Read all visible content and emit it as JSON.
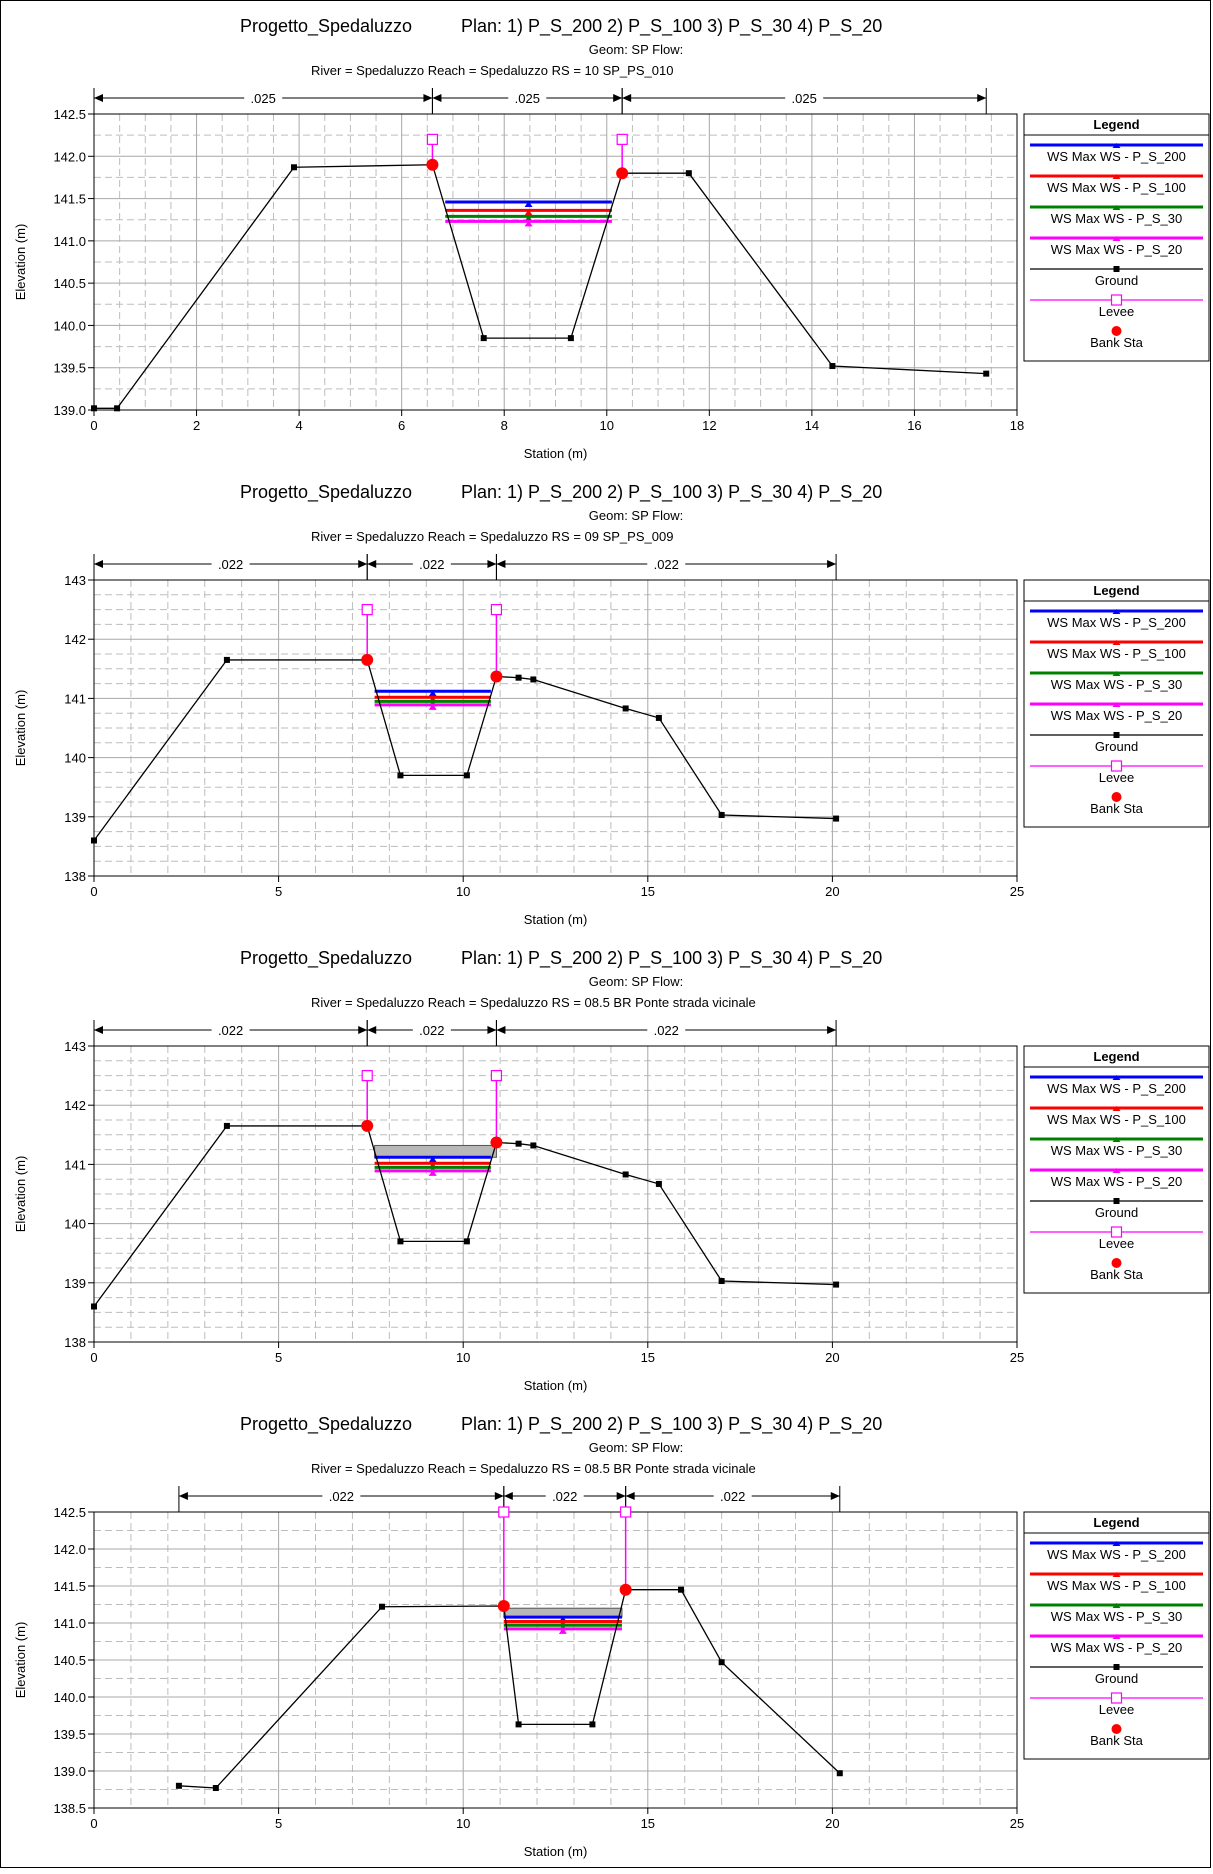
{
  "legend": {
    "title": "Legend",
    "entries": [
      "WS Max WS - P_S_200",
      "WS Max WS - P_S_100",
      "WS Max WS - P_S_30",
      "WS Max WS - P_S_20",
      "Ground",
      "Levee",
      "Bank Sta"
    ],
    "colors": [
      "#0000ff",
      "#ff0000",
      "#008000",
      "#ff00ff",
      "#000000",
      "#ff00ff",
      "#ff0000"
    ]
  },
  "chart_data": [
    {
      "type": "line",
      "title_project": "Progetto_Spedaluzzo",
      "title_plan": "Plan:     1) P_S_200    2) P_S_100    3) P_S_30    4) P_S_20",
      "title_geom": "Geom: SP    Flow:",
      "title_river": "River = Spedaluzzo    Reach = Spedaluzzo       RS = 10   SP_PS_010",
      "xlabel": "Station (m)",
      "ylabel": "Elevation (m)",
      "xlim": [
        0,
        18
      ],
      "ylim": [
        139.0,
        142.5
      ],
      "xticks": [
        0,
        2,
        4,
        6,
        8,
        10,
        12,
        14,
        16,
        18
      ],
      "yticks": [
        139.0,
        139.5,
        140.0,
        140.5,
        141.0,
        141.5,
        142.0,
        142.5
      ],
      "ydecimals": 1,
      "xminor": 4,
      "yminor": 2,
      "manning": [
        {
          "from": 0,
          "to": 6.6,
          "label": ".025"
        },
        {
          "from": 6.6,
          "to": 10.3,
          "label": ".025"
        },
        {
          "from": 10.3,
          "to": 17.4,
          "label": ".025"
        }
      ],
      "ground": [
        [
          0,
          139.02
        ],
        [
          0.45,
          139.02
        ],
        [
          3.9,
          141.87
        ],
        [
          6.6,
          141.9
        ],
        [
          7.6,
          139.85
        ],
        [
          9.3,
          139.85
        ],
        [
          10.3,
          141.8
        ],
        [
          11.6,
          141.8
        ],
        [
          14.4,
          139.52
        ],
        [
          17.4,
          139.43
        ]
      ],
      "levees": [
        [
          6.6,
          142.2
        ],
        [
          10.3,
          142.2
        ]
      ],
      "bank_stations": [
        [
          6.6,
          141.9
        ],
        [
          10.3,
          141.8
        ]
      ],
      "deck": null,
      "water_surface": [
        {
          "name": "WS Max WS - P_S_200",
          "elev": 141.46,
          "x1": 6.85,
          "x2": 10.1
        },
        {
          "name": "WS Max WS - P_S_100",
          "elev": 141.36,
          "x1": 6.85,
          "x2": 10.1
        },
        {
          "name": "WS Max WS - P_S_30",
          "elev": 141.29,
          "x1": 6.85,
          "x2": 10.1
        },
        {
          "name": "WS Max WS - P_S_20",
          "elev": 141.23,
          "x1": 6.85,
          "x2": 10.1
        }
      ]
    },
    {
      "type": "line",
      "title_project": "Progetto_Spedaluzzo",
      "title_plan": "Plan:     1) P_S_200    2) P_S_100    3) P_S_30    4) P_S_20",
      "title_geom": "Geom: SP    Flow:",
      "title_river": "River = Spedaluzzo    Reach = Spedaluzzo       RS = 09   SP_PS_009",
      "xlabel": "Station (m)",
      "ylabel": "Elevation (m)",
      "xlim": [
        0,
        25
      ],
      "ylim": [
        138,
        143
      ],
      "xticks": [
        0,
        5,
        10,
        15,
        20,
        25
      ],
      "yticks": [
        138,
        139,
        140,
        141,
        142,
        143
      ],
      "ydecimals": 0,
      "xminor": 5,
      "yminor": 4,
      "manning": [
        {
          "from": 0,
          "to": 7.4,
          "label": ".022"
        },
        {
          "from": 7.4,
          "to": 10.9,
          "label": ".022"
        },
        {
          "from": 10.9,
          "to": 20.1,
          "label": ".022"
        }
      ],
      "ground": [
        [
          0,
          138.6
        ],
        [
          3.6,
          141.65
        ],
        [
          7.4,
          141.65
        ],
        [
          8.3,
          139.7
        ],
        [
          10.1,
          139.7
        ],
        [
          10.9,
          141.37
        ],
        [
          11.5,
          141.35
        ],
        [
          11.9,
          141.32
        ],
        [
          14.4,
          140.83
        ],
        [
          15.3,
          140.67
        ],
        [
          17.0,
          139.03
        ],
        [
          20.1,
          138.97
        ]
      ],
      "levees": [
        [
          7.4,
          142.5
        ],
        [
          10.9,
          142.5
        ]
      ],
      "bank_stations": [
        [
          7.4,
          141.65
        ],
        [
          10.9,
          141.37
        ]
      ],
      "deck": null,
      "water_surface": [
        {
          "name": "WS Max WS - P_S_200",
          "elev": 141.12,
          "x1": 7.6,
          "x2": 10.75
        },
        {
          "name": "WS Max WS - P_S_100",
          "elev": 141.02,
          "x1": 7.6,
          "x2": 10.75
        },
        {
          "name": "WS Max WS - P_S_30",
          "elev": 140.95,
          "x1": 7.6,
          "x2": 10.75
        },
        {
          "name": "WS Max WS - P_S_20",
          "elev": 140.89,
          "x1": 7.6,
          "x2": 10.75
        }
      ]
    },
    {
      "type": "line",
      "title_project": "Progetto_Spedaluzzo",
      "title_plan": "Plan:     1) P_S_200    2) P_S_100    3) P_S_30    4) P_S_20",
      "title_geom": "Geom: SP    Flow:",
      "title_river": "River = Spedaluzzo    Reach = Spedaluzzo       RS = 08.5     BR   Ponte strada vicinale",
      "xlabel": "Station (m)",
      "ylabel": "Elevation (m)",
      "xlim": [
        0,
        25
      ],
      "ylim": [
        138,
        143
      ],
      "xticks": [
        0,
        5,
        10,
        15,
        20,
        25
      ],
      "yticks": [
        138,
        139,
        140,
        141,
        142,
        143
      ],
      "ydecimals": 0,
      "xminor": 5,
      "yminor": 4,
      "manning": [
        {
          "from": 0,
          "to": 7.4,
          "label": ".022"
        },
        {
          "from": 7.4,
          "to": 10.9,
          "label": ".022"
        },
        {
          "from": 10.9,
          "to": 20.1,
          "label": ".022"
        }
      ],
      "ground": [
        [
          0,
          138.6
        ],
        [
          3.6,
          141.65
        ],
        [
          7.4,
          141.65
        ],
        [
          8.3,
          139.7
        ],
        [
          10.1,
          139.7
        ],
        [
          10.9,
          141.37
        ],
        [
          11.5,
          141.35
        ],
        [
          11.9,
          141.32
        ],
        [
          14.4,
          140.83
        ],
        [
          15.3,
          140.67
        ],
        [
          17.0,
          139.03
        ],
        [
          20.1,
          138.97
        ]
      ],
      "levees": [
        [
          7.4,
          142.5
        ],
        [
          10.9,
          142.5
        ]
      ],
      "bank_stations": [
        [
          7.4,
          141.65
        ],
        [
          10.9,
          141.37
        ]
      ],
      "deck": {
        "x1": 7.6,
        "x2": 10.9,
        "top": 141.32,
        "bottom": 141.12
      },
      "water_surface": [
        {
          "name": "WS Max WS - P_S_200",
          "elev": 141.12,
          "x1": 7.6,
          "x2": 10.75
        },
        {
          "name": "WS Max WS - P_S_100",
          "elev": 141.02,
          "x1": 7.6,
          "x2": 10.75
        },
        {
          "name": "WS Max WS - P_S_30",
          "elev": 140.95,
          "x1": 7.6,
          "x2": 10.75
        },
        {
          "name": "WS Max WS - P_S_20",
          "elev": 140.89,
          "x1": 7.6,
          "x2": 10.75
        }
      ]
    },
    {
      "type": "line",
      "title_project": "Progetto_Spedaluzzo",
      "title_plan": "Plan:     1) P_S_200    2) P_S_100    3) P_S_30    4) P_S_20",
      "title_geom": "Geom: SP    Flow:",
      "title_river": "River = Spedaluzzo    Reach = Spedaluzzo       RS = 08.5     BR   Ponte strada vicinale",
      "xlabel": "Station (m)",
      "ylabel": "Elevation (m)",
      "xlim": [
        0,
        25
      ],
      "ylim": [
        138.5,
        142.5
      ],
      "xticks": [
        0,
        5,
        10,
        15,
        20,
        25
      ],
      "yticks": [
        138.5,
        139.0,
        139.5,
        140.0,
        140.5,
        141.0,
        141.5,
        142.0,
        142.5
      ],
      "ydecimals": 1,
      "xminor": 5,
      "yminor": 2,
      "manning": [
        {
          "from": 2.3,
          "to": 11.1,
          "label": ".022"
        },
        {
          "from": 11.1,
          "to": 14.4,
          "label": ".022"
        },
        {
          "from": 14.4,
          "to": 20.2,
          "label": ".022"
        }
      ],
      "ground": [
        [
          2.3,
          138.8
        ],
        [
          3.3,
          138.77
        ],
        [
          7.8,
          141.22
        ],
        [
          11.1,
          141.23
        ],
        [
          11.5,
          139.63
        ],
        [
          13.5,
          139.63
        ],
        [
          14.4,
          141.45
        ],
        [
          15.9,
          141.45
        ],
        [
          17.0,
          140.47
        ],
        [
          20.2,
          138.97
        ]
      ],
      "levees": [
        [
          11.1,
          142.5
        ],
        [
          14.4,
          142.5
        ]
      ],
      "bank_stations": [
        [
          11.1,
          141.23
        ],
        [
          14.4,
          141.45
        ]
      ],
      "deck": {
        "x1": 11.1,
        "x2": 14.3,
        "top": 141.2,
        "bottom": 141.08
      },
      "water_surface": [
        {
          "name": "WS Max WS - P_S_200",
          "elev": 141.08,
          "x1": 11.1,
          "x2": 14.3
        },
        {
          "name": "WS Max WS - P_S_100",
          "elev": 141.02,
          "x1": 11.1,
          "x2": 14.3
        },
        {
          "name": "WS Max WS - P_S_30",
          "elev": 140.97,
          "x1": 11.1,
          "x2": 14.3
        },
        {
          "name": "WS Max WS - P_S_20",
          "elev": 140.92,
          "x1": 11.1,
          "x2": 14.3
        }
      ]
    }
  ]
}
